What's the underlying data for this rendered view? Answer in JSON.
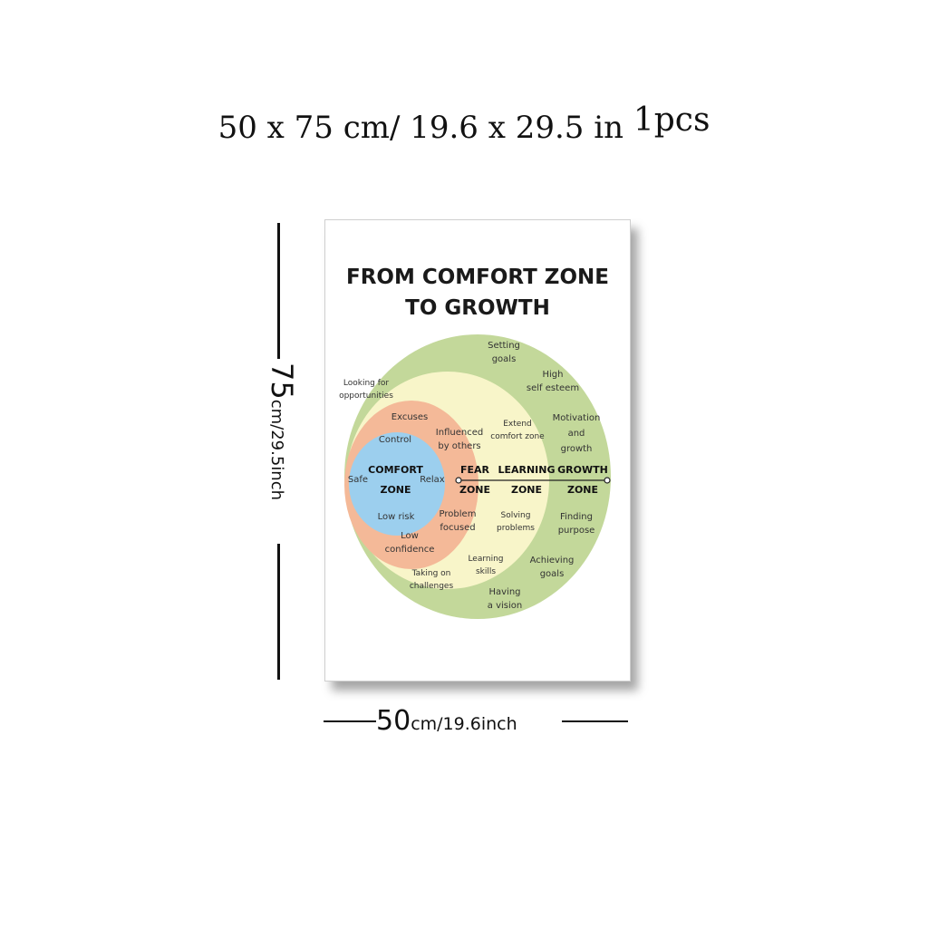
{
  "header": {
    "size": "50 x 75 cm/ 19.6 x 29.5 in",
    "qty": "1pcs"
  },
  "poster": {
    "title_line1": "FROM COMFORT ZONE",
    "title_line2": "TO GROWTH",
    "colors": {
      "growth": "#c3d89a",
      "learning": "#f8f5c9",
      "fear": "#f4b998",
      "comfort": "#9ccfee"
    },
    "zones": {
      "comfort": [
        "COMFORT",
        "ZONE"
      ],
      "fear": [
        "FEAR",
        "ZONE"
      ],
      "learning": [
        "LEARNING",
        "ZONE"
      ],
      "growth": [
        "GROWTH",
        "ZONE"
      ]
    },
    "comfort_items": {
      "control": "Control",
      "safe": "Safe",
      "relax": "Relax",
      "low_risk": "Low risk"
    },
    "fear_items": {
      "excuses": "Excuses",
      "influenced": [
        "Influenced",
        "by others"
      ],
      "problem_focused": [
        "Problem",
        "focused"
      ],
      "low_confidence": [
        "Low",
        "confidence"
      ]
    },
    "learning_items": {
      "looking": [
        "Looking for",
        "opportunities"
      ],
      "extend": [
        "Extend",
        "comfort zone"
      ],
      "solving": [
        "Solving",
        "problems"
      ],
      "learning_skills": [
        "Learning",
        "skills"
      ],
      "taking_on": [
        "Taking on",
        "challenges"
      ]
    },
    "growth_items": {
      "setting_goals": [
        "Setting",
        "goals"
      ],
      "high_esteem": [
        "High",
        "self esteem"
      ],
      "motivation": [
        "Motivation",
        "and",
        "growth"
      ],
      "finding_purpose": [
        "Finding",
        "purpose"
      ],
      "achieving_goals": [
        "Achieving",
        "goals"
      ],
      "having_vision": [
        "Having",
        "a vision"
      ]
    }
  },
  "dimensions": {
    "height_value": "75",
    "height_unit": "cm/29.5inch",
    "width_value": "50",
    "width_unit": "cm/19.6inch"
  }
}
